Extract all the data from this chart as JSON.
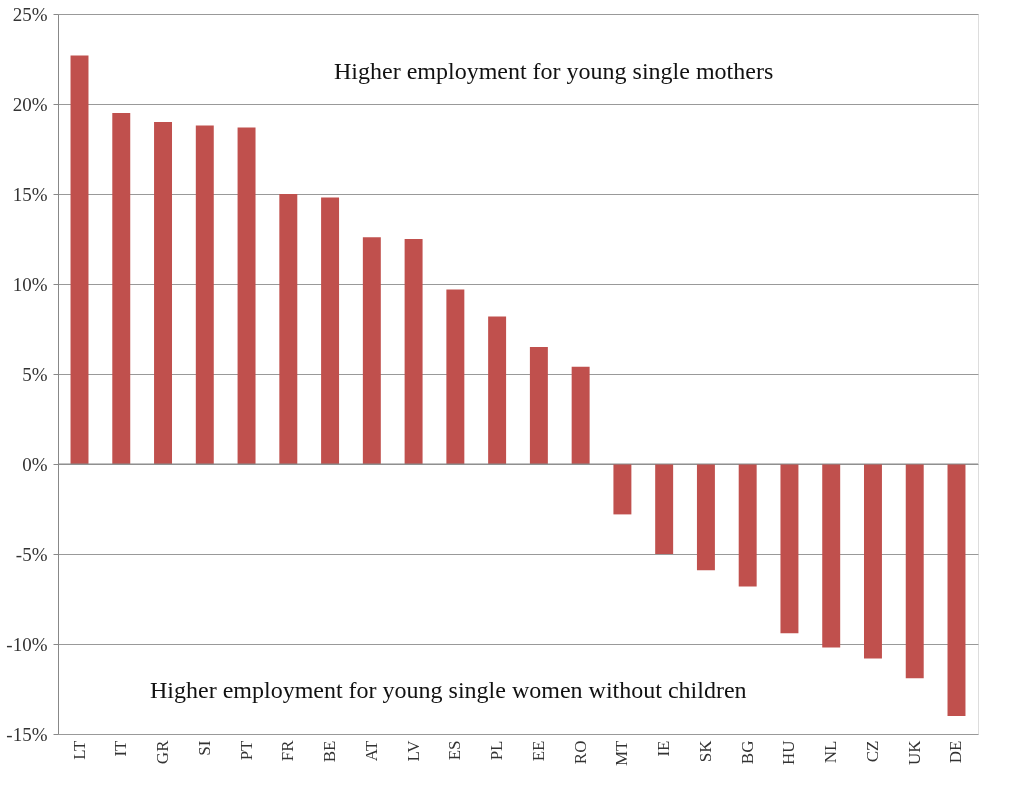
{
  "chart_data": {
    "type": "bar",
    "categories": [
      "LT",
      "IT",
      "GR",
      "SI",
      "PT",
      "FR",
      "BE",
      "AT",
      "LV",
      "ES",
      "PL",
      "EE",
      "RO",
      "MT",
      "IE",
      "SK",
      "BG",
      "HU",
      "NL",
      "CZ",
      "UK",
      "DE"
    ],
    "values": [
      22.7,
      19.5,
      19.0,
      18.8,
      18.7,
      15.0,
      14.8,
      12.6,
      12.5,
      9.7,
      8.2,
      6.5,
      5.4,
      -2.8,
      -5.0,
      -5.9,
      -6.8,
      -9.4,
      -10.2,
      -10.8,
      -11.9,
      -14.0
    ],
    "color": "#c0504d",
    "ylim": [
      -15,
      25
    ],
    "yticks": [
      {
        "value": -15,
        "label": "-15%"
      },
      {
        "value": -10,
        "label": "-10%"
      },
      {
        "value": -5,
        "label": "-5%"
      },
      {
        "value": 0,
        "label": "0%"
      },
      {
        "value": 5,
        "label": "5%"
      },
      {
        "value": 10,
        "label": "10%"
      },
      {
        "value": 15,
        "label": "15%"
      },
      {
        "value": 20,
        "label": "20%"
      },
      {
        "value": 25,
        "label": "25%"
      }
    ],
    "grid": "y",
    "annotations": [
      "Higher employment for young single mothers",
      "Higher employment for young single women without children"
    ]
  }
}
